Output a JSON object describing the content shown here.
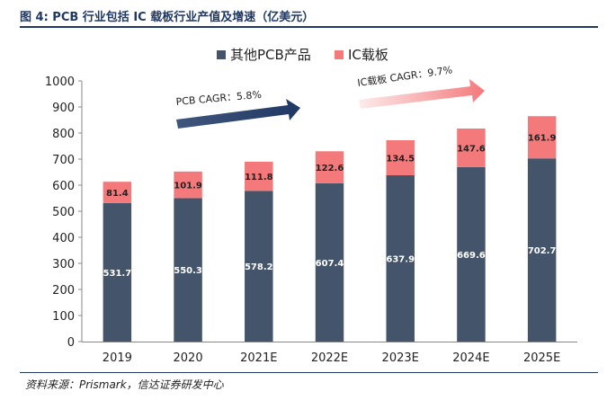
{
  "header": {
    "title": "图 4:  PCB 行业包括 IC 载板行业产值及增速（亿美元）"
  },
  "footer": {
    "source": "资料来源：Prismark，信达证券研发中心"
  },
  "chart_data": {
    "type": "bar",
    "stacked": true,
    "categories": [
      "2019",
      "2020",
      "2021E",
      "2022E",
      "2023E",
      "2024E",
      "2025E"
    ],
    "series": [
      {
        "name": "其他PCB产品",
        "values": [
          531.7,
          550.3,
          578.2,
          607.4,
          637.9,
          669.6,
          702.7
        ],
        "color": "#44546a"
      },
      {
        "name": "IC载板",
        "values": [
          81.4,
          101.9,
          111.8,
          122.6,
          134.5,
          147.6,
          161.9
        ],
        "color": "#f4797b"
      }
    ],
    "ylim": [
      0,
      1000
    ],
    "yticks": [
      0,
      100,
      200,
      300,
      400,
      500,
      600,
      700,
      800,
      900,
      1000
    ],
    "legend_position": "top",
    "grid": false,
    "annotations": [
      {
        "label": "PCB CAGR：5.8%",
        "color": "#1f3864"
      },
      {
        "label": "IC载板 CAGR：9.7%",
        "color": "#f4797b"
      }
    ]
  }
}
